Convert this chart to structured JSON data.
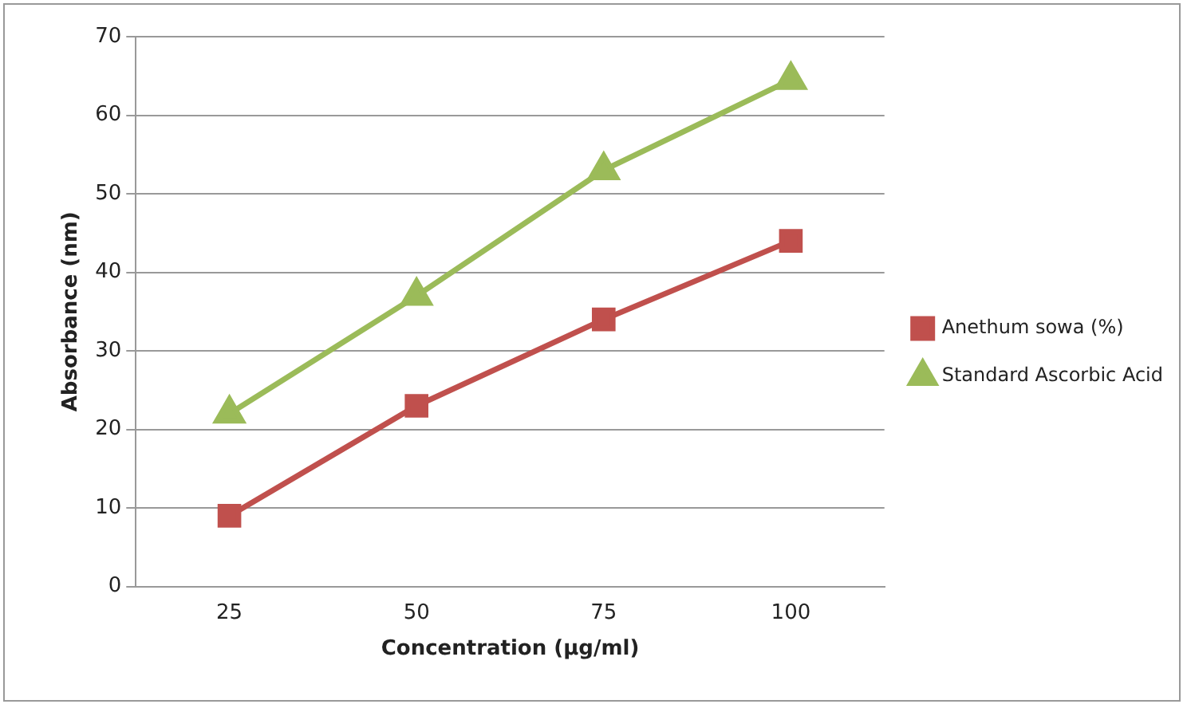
{
  "chart_data": {
    "type": "line",
    "xlabel": "Concentration (µg/ml)",
    "ylabel": "Absorbance (nm)",
    "categories": [
      "25",
      "50",
      "75",
      "100"
    ],
    "series": [
      {
        "name": "Anethum sowa (%)",
        "color": "#c0504d",
        "marker": "square",
        "values": [
          9,
          23,
          34,
          44
        ]
      },
      {
        "name": "Standard Ascorbic Acid",
        "color": "#9bbb59",
        "marker": "triangle",
        "values": [
          22,
          37,
          53,
          64.5
        ]
      }
    ],
    "ylim": [
      0,
      70
    ],
    "yticks": [
      0,
      10,
      20,
      30,
      40,
      50,
      60,
      70
    ],
    "grid": "y",
    "legend": "right",
    "line_style": "solid"
  }
}
